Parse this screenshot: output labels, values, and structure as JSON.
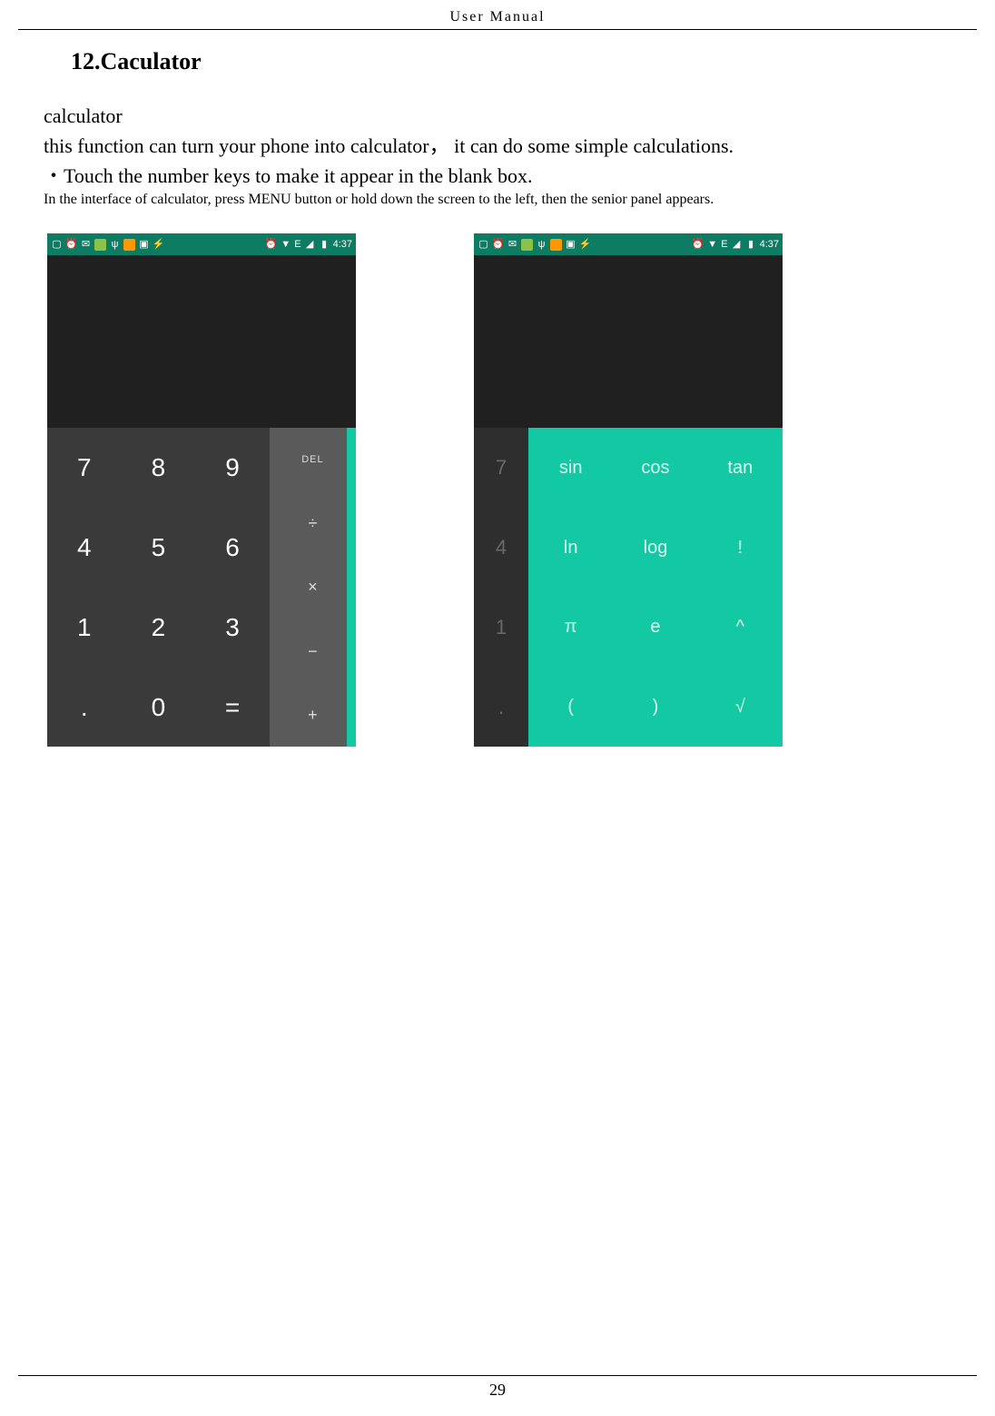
{
  "header": {
    "title": "User    Manual"
  },
  "section": {
    "title": "12.Caculator"
  },
  "paragraphs": {
    "p1": "calculator",
    "p2": "this function can turn your phone into calculator，   it can do some simple calculations.",
    "p3": "・Touch the number keys to make it appear in the blank box.",
    "p4": "In the interface of calculator, press MENU button or hold down the screen to the left, then the senior panel appears."
  },
  "page_number": "29",
  "statusbar": {
    "time": "4:37",
    "signal": "E",
    "colors": {
      "bg": "#0e7b63",
      "fg": "#ffffff"
    }
  },
  "phone1": {
    "numpad": {
      "keys": [
        "7",
        "8",
        "9",
        "4",
        "5",
        "6",
        "1",
        "2",
        "3",
        ".",
        "0",
        "="
      ],
      "bg": "#3a3a3a",
      "fg": "#ffffff",
      "fontsize": 28
    },
    "oppad": {
      "keys": [
        "DEL",
        "÷",
        "×",
        "−",
        "+"
      ],
      "bg": "#5a5a5a",
      "fg": "#dddddd",
      "strip_color": "#13c9a3"
    },
    "display_bg": "#202020"
  },
  "phone2": {
    "numcol": {
      "keys": [
        "7",
        "4",
        "1",
        "."
      ],
      "bg": "#2e2e2e",
      "fg": "#696969"
    },
    "scipad": {
      "keys": [
        "sin",
        "cos",
        "tan",
        "ln",
        "log",
        "!",
        "π",
        "e",
        "^",
        "(",
        ")",
        "√"
      ],
      "bg": "#13c9a3",
      "fg": "#ffffff",
      "fontsize": 20
    },
    "display_bg": "#202020"
  },
  "colors": {
    "page_bg": "#ffffff",
    "text": "#000000",
    "rule": "#000000"
  }
}
